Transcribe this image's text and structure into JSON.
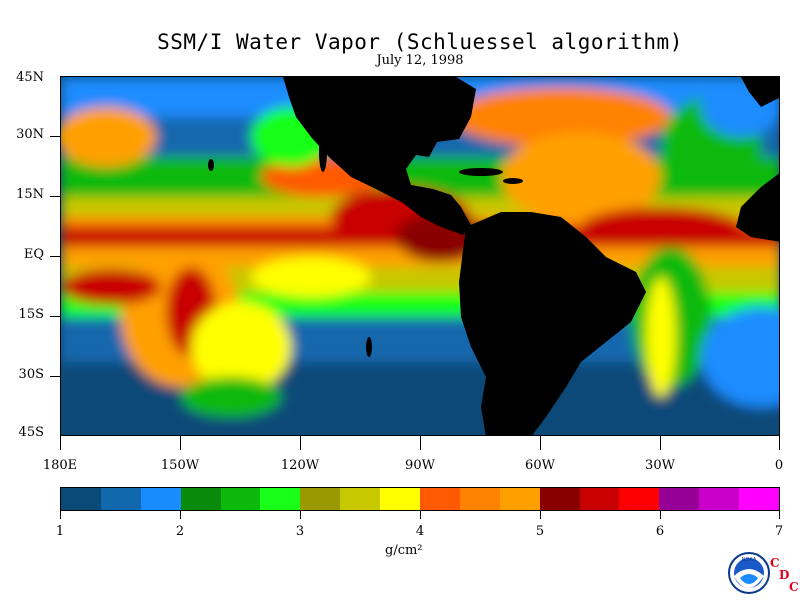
{
  "title": "SSM/I Water Vapor (Schluessel algorithm)",
  "subtitle": "July 12, 1998",
  "lat_labels": [
    "45N",
    "30N",
    "15N",
    "EQ",
    "15S",
    "30S",
    "45S"
  ],
  "lon_labels": [
    "180E",
    "150W",
    "120W",
    "90W",
    "60W",
    "30W",
    "0"
  ],
  "colorbar": {
    "labels": [
      "1",
      "2",
      "3",
      "4",
      "5",
      "6",
      "7"
    ],
    "unit": "g/cm²",
    "colors": [
      "#0a4a78",
      "#1268ad",
      "#1a8cff",
      "#0a8a0a",
      "#0ab90a",
      "#19ff19",
      "#9a9a00",
      "#c8c800",
      "#ffff00",
      "#ff5a00",
      "#ff8200",
      "#ffa000",
      "#8a0000",
      "#c80000",
      "#ff0000",
      "#960096",
      "#c800c8",
      "#ff00ff"
    ]
  },
  "logo": {
    "text": "NOAA",
    "cdc": [
      "C",
      "D",
      "C"
    ]
  },
  "map_colors": {
    "ocean_bg": "#0a4a78",
    "land": "#000000"
  }
}
